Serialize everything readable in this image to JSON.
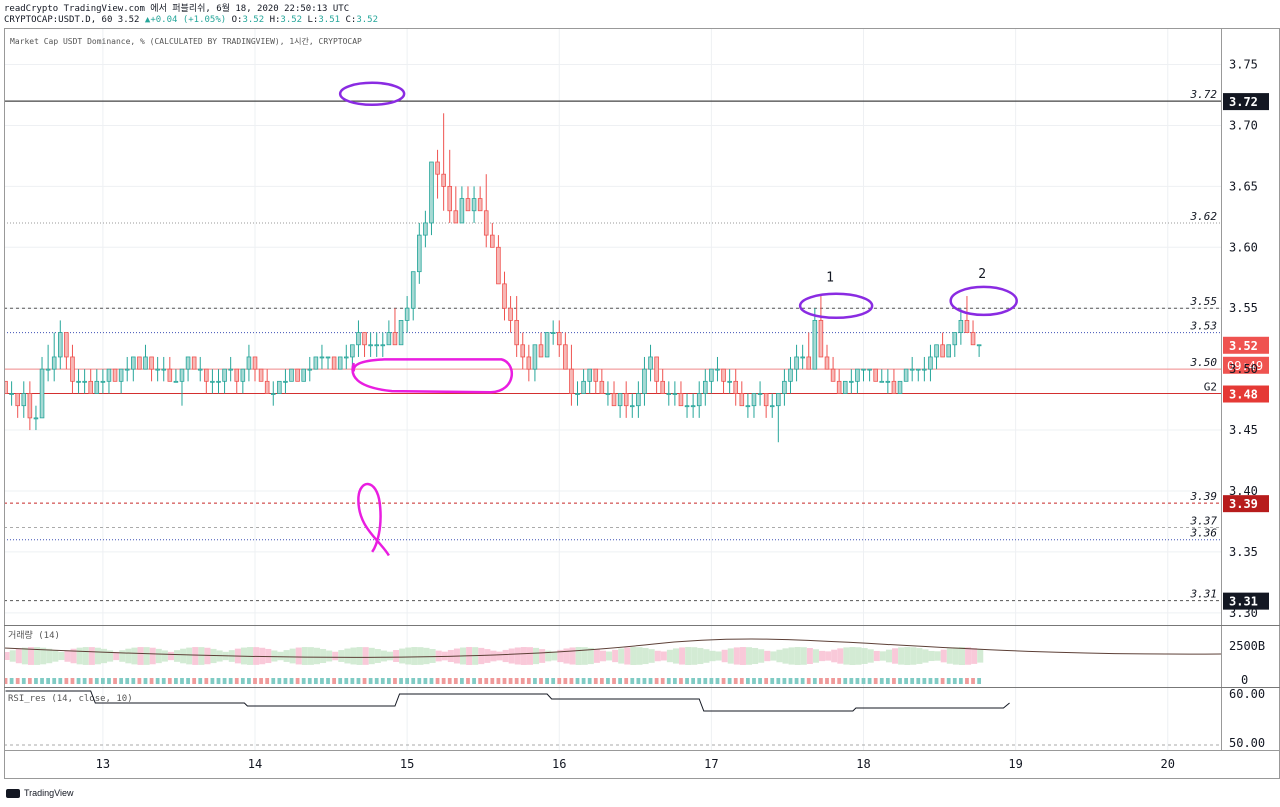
{
  "header": {
    "line1": "readCrypto TradingView.com 에서 퍼블리쉬, 6월 18, 2020 22:50:13 UTC",
    "symbol": "CRYPTOCAP:USDT.D, 60",
    "last": "3.52",
    "change_arrow": "▲",
    "change": "+0.04 (+1.05%)",
    "o_label": "O:",
    "o": "3.52",
    "h_label": "H:",
    "h": "3.52",
    "l_label": "L:",
    "l": "3.51",
    "c_label": "C:",
    "c": "3.52"
  },
  "chart_data": {
    "type": "candlestick",
    "title": "Market Cap USDT Dominance, % (CALCULATED BY TRADINGVIEW), 1시간, CRYPTOCAP",
    "ylim": [
      3.29,
      3.78
    ],
    "y_ticks": [
      "3.30",
      "3.35",
      "3.40",
      "3.45",
      "3.50",
      "3.55",
      "3.60",
      "3.65",
      "3.70",
      "3.75"
    ],
    "x_ticks": [
      "13",
      "14",
      "15",
      "16",
      "17",
      "18",
      "19",
      "20"
    ],
    "x_range": [
      12.35,
      20.35
    ],
    "colors": {
      "up": "#26a69a",
      "down": "#ef5350",
      "up_fill": "#a7d9d4",
      "down_fill": "#f7b8b6",
      "annot_purple": "#8a2be2",
      "annot_magenta": "#e91ee0"
    },
    "ohlc": [
      [
        12.36,
        3.49,
        3.49,
        3.48,
        3.48
      ],
      [
        12.4,
        3.48,
        3.49,
        3.47,
        3.48
      ],
      [
        12.44,
        3.48,
        3.48,
        3.46,
        3.47
      ],
      [
        12.48,
        3.47,
        3.49,
        3.46,
        3.48
      ],
      [
        12.52,
        3.48,
        3.49,
        3.45,
        3.46
      ],
      [
        12.56,
        3.46,
        3.47,
        3.45,
        3.46
      ],
      [
        12.6,
        3.46,
        3.51,
        3.46,
        3.5
      ],
      [
        12.64,
        3.5,
        3.52,
        3.49,
        3.5
      ],
      [
        12.68,
        3.5,
        3.53,
        3.49,
        3.51
      ],
      [
        12.72,
        3.51,
        3.54,
        3.5,
        3.53
      ],
      [
        12.76,
        3.53,
        3.53,
        3.5,
        3.51
      ],
      [
        12.8,
        3.51,
        3.52,
        3.48,
        3.49
      ],
      [
        12.84,
        3.49,
        3.5,
        3.48,
        3.49
      ],
      [
        12.88,
        3.49,
        3.5,
        3.48,
        3.49
      ],
      [
        12.92,
        3.49,
        3.5,
        3.48,
        3.48
      ],
      [
        12.96,
        3.48,
        3.5,
        3.48,
        3.49
      ],
      [
        13.0,
        3.49,
        3.5,
        3.48,
        3.49
      ],
      [
        13.04,
        3.49,
        3.5,
        3.48,
        3.5
      ],
      [
        13.08,
        3.5,
        3.5,
        3.49,
        3.49
      ],
      [
        13.12,
        3.49,
        3.5,
        3.48,
        3.5
      ],
      [
        13.16,
        3.5,
        3.51,
        3.49,
        3.5
      ],
      [
        13.2,
        3.5,
        3.51,
        3.49,
        3.51
      ],
      [
        13.24,
        3.51,
        3.51,
        3.5,
        3.5
      ],
      [
        13.28,
        3.5,
        3.52,
        3.5,
        3.51
      ],
      [
        13.32,
        3.51,
        3.51,
        3.49,
        3.5
      ],
      [
        13.36,
        3.5,
        3.51,
        3.49,
        3.5
      ],
      [
        13.4,
        3.5,
        3.51,
        3.49,
        3.5
      ],
      [
        13.44,
        3.5,
        3.51,
        3.49,
        3.49
      ],
      [
        13.48,
        3.49,
        3.5,
        3.49,
        3.49
      ],
      [
        13.52,
        3.49,
        3.5,
        3.47,
        3.5
      ],
      [
        13.56,
        3.5,
        3.51,
        3.49,
        3.51
      ],
      [
        13.6,
        3.51,
        3.51,
        3.5,
        3.5
      ],
      [
        13.64,
        3.5,
        3.51,
        3.49,
        3.5
      ],
      [
        13.68,
        3.5,
        3.5,
        3.48,
        3.49
      ],
      [
        13.72,
        3.49,
        3.5,
        3.48,
        3.49
      ],
      [
        13.76,
        3.49,
        3.5,
        3.48,
        3.49
      ],
      [
        13.8,
        3.49,
        3.5,
        3.48,
        3.5
      ],
      [
        13.84,
        3.5,
        3.51,
        3.49,
        3.5
      ],
      [
        13.88,
        3.5,
        3.5,
        3.48,
        3.49
      ],
      [
        13.92,
        3.49,
        3.5,
        3.48,
        3.5
      ],
      [
        13.96,
        3.5,
        3.52,
        3.49,
        3.51
      ],
      [
        14.0,
        3.51,
        3.51,
        3.49,
        3.5
      ],
      [
        14.04,
        3.5,
        3.5,
        3.49,
        3.49
      ],
      [
        14.08,
        3.49,
        3.5,
        3.48,
        3.48
      ],
      [
        14.12,
        3.48,
        3.49,
        3.47,
        3.48
      ],
      [
        14.16,
        3.48,
        3.49,
        3.48,
        3.49
      ],
      [
        14.2,
        3.49,
        3.5,
        3.48,
        3.49
      ],
      [
        14.24,
        3.49,
        3.5,
        3.49,
        3.5
      ],
      [
        14.28,
        3.5,
        3.5,
        3.49,
        3.49
      ],
      [
        14.32,
        3.49,
        3.5,
        3.49,
        3.5
      ],
      [
        14.36,
        3.5,
        3.51,
        3.49,
        3.5
      ],
      [
        14.4,
        3.5,
        3.51,
        3.5,
        3.51
      ],
      [
        14.44,
        3.51,
        3.52,
        3.5,
        3.51
      ],
      [
        14.48,
        3.51,
        3.51,
        3.5,
        3.51
      ],
      [
        14.52,
        3.51,
        3.51,
        3.5,
        3.5
      ],
      [
        14.56,
        3.5,
        3.51,
        3.5,
        3.51
      ],
      [
        14.6,
        3.51,
        3.52,
        3.5,
        3.51
      ],
      [
        14.64,
        3.51,
        3.52,
        3.5,
        3.52
      ],
      [
        14.68,
        3.52,
        3.54,
        3.51,
        3.53
      ],
      [
        14.72,
        3.53,
        3.53,
        3.51,
        3.52
      ],
      [
        14.76,
        3.52,
        3.53,
        3.51,
        3.52
      ],
      [
        14.8,
        3.52,
        3.53,
        3.51,
        3.52
      ],
      [
        14.84,
        3.52,
        3.53,
        3.51,
        3.52
      ],
      [
        14.88,
        3.52,
        3.54,
        3.52,
        3.53
      ],
      [
        14.92,
        3.53,
        3.55,
        3.52,
        3.52
      ],
      [
        14.96,
        3.52,
        3.54,
        3.52,
        3.54
      ],
      [
        15.0,
        3.54,
        3.56,
        3.53,
        3.55
      ],
      [
        15.04,
        3.55,
        3.58,
        3.54,
        3.58
      ],
      [
        15.08,
        3.58,
        3.62,
        3.57,
        3.61
      ],
      [
        15.12,
        3.61,
        3.63,
        3.6,
        3.62
      ],
      [
        15.16,
        3.62,
        3.67,
        3.61,
        3.67
      ],
      [
        15.2,
        3.67,
        3.68,
        3.64,
        3.66
      ],
      [
        15.24,
        3.66,
        3.71,
        3.63,
        3.65
      ],
      [
        15.28,
        3.65,
        3.68,
        3.62,
        3.63
      ],
      [
        15.32,
        3.63,
        3.65,
        3.62,
        3.62
      ],
      [
        15.36,
        3.62,
        3.65,
        3.62,
        3.64
      ],
      [
        15.4,
        3.64,
        3.65,
        3.63,
        3.63
      ],
      [
        15.44,
        3.63,
        3.65,
        3.62,
        3.64
      ],
      [
        15.48,
        3.64,
        3.65,
        3.63,
        3.63
      ],
      [
        15.52,
        3.63,
        3.66,
        3.6,
        3.61
      ],
      [
        15.56,
        3.61,
        3.62,
        3.6,
        3.6
      ],
      [
        15.6,
        3.6,
        3.61,
        3.57,
        3.57
      ],
      [
        15.64,
        3.57,
        3.58,
        3.54,
        3.55
      ],
      [
        15.68,
        3.55,
        3.56,
        3.53,
        3.54
      ],
      [
        15.72,
        3.54,
        3.56,
        3.51,
        3.52
      ],
      [
        15.76,
        3.52,
        3.53,
        3.5,
        3.51
      ],
      [
        15.8,
        3.51,
        3.52,
        3.49,
        3.5
      ],
      [
        15.84,
        3.5,
        3.52,
        3.49,
        3.52
      ],
      [
        15.88,
        3.52,
        3.53,
        3.51,
        3.51
      ],
      [
        15.92,
        3.51,
        3.53,
        3.51,
        3.53
      ],
      [
        15.96,
        3.53,
        3.54,
        3.52,
        3.53
      ],
      [
        16.0,
        3.53,
        3.54,
        3.51,
        3.52
      ],
      [
        16.04,
        3.52,
        3.53,
        3.5,
        3.5
      ],
      [
        16.08,
        3.5,
        3.52,
        3.47,
        3.48
      ],
      [
        16.12,
        3.48,
        3.49,
        3.47,
        3.48
      ],
      [
        16.16,
        3.48,
        3.5,
        3.48,
        3.49
      ],
      [
        16.2,
        3.49,
        3.5,
        3.48,
        3.5
      ],
      [
        16.24,
        3.5,
        3.5,
        3.48,
        3.49
      ],
      [
        16.28,
        3.49,
        3.5,
        3.48,
        3.48
      ],
      [
        16.32,
        3.48,
        3.49,
        3.47,
        3.48
      ],
      [
        16.36,
        3.48,
        3.49,
        3.47,
        3.47
      ],
      [
        16.4,
        3.47,
        3.48,
        3.46,
        3.48
      ],
      [
        16.44,
        3.48,
        3.49,
        3.46,
        3.47
      ],
      [
        16.48,
        3.47,
        3.48,
        3.46,
        3.47
      ],
      [
        16.52,
        3.47,
        3.49,
        3.46,
        3.48
      ],
      [
        16.56,
        3.48,
        3.51,
        3.47,
        3.5
      ],
      [
        16.6,
        3.5,
        3.52,
        3.49,
        3.51
      ],
      [
        16.64,
        3.51,
        3.51,
        3.48,
        3.49
      ],
      [
        16.68,
        3.49,
        3.5,
        3.48,
        3.48
      ],
      [
        16.72,
        3.48,
        3.49,
        3.47,
        3.48
      ],
      [
        16.76,
        3.48,
        3.49,
        3.47,
        3.48
      ],
      [
        16.8,
        3.48,
        3.49,
        3.47,
        3.47
      ],
      [
        16.84,
        3.47,
        3.48,
        3.46,
        3.47
      ],
      [
        16.88,
        3.47,
        3.48,
        3.46,
        3.47
      ],
      [
        16.92,
        3.47,
        3.49,
        3.46,
        3.48
      ],
      [
        16.96,
        3.48,
        3.5,
        3.47,
        3.49
      ],
      [
        17.0,
        3.49,
        3.5,
        3.48,
        3.5
      ],
      [
        17.04,
        3.5,
        3.51,
        3.49,
        3.5
      ],
      [
        17.08,
        3.5,
        3.5,
        3.48,
        3.49
      ],
      [
        17.12,
        3.49,
        3.5,
        3.48,
        3.49
      ],
      [
        17.16,
        3.49,
        3.5,
        3.47,
        3.48
      ],
      [
        17.2,
        3.48,
        3.49,
        3.47,
        3.47
      ],
      [
        17.24,
        3.47,
        3.48,
        3.46,
        3.47
      ],
      [
        17.28,
        3.47,
        3.48,
        3.46,
        3.48
      ],
      [
        17.32,
        3.48,
        3.49,
        3.47,
        3.48
      ],
      [
        17.36,
        3.48,
        3.48,
        3.46,
        3.47
      ],
      [
        17.4,
        3.47,
        3.48,
        3.46,
        3.47
      ],
      [
        17.44,
        3.47,
        3.48,
        3.44,
        3.48
      ],
      [
        17.48,
        3.48,
        3.5,
        3.47,
        3.49
      ],
      [
        17.52,
        3.49,
        3.51,
        3.48,
        3.5
      ],
      [
        17.56,
        3.5,
        3.52,
        3.49,
        3.51
      ],
      [
        17.6,
        3.51,
        3.52,
        3.5,
        3.51
      ],
      [
        17.64,
        3.51,
        3.53,
        3.5,
        3.5
      ],
      [
        17.68,
        3.5,
        3.55,
        3.5,
        3.54
      ],
      [
        17.72,
        3.54,
        3.56,
        3.51,
        3.51
      ],
      [
        17.76,
        3.51,
        3.52,
        3.5,
        3.5
      ],
      [
        17.8,
        3.5,
        3.51,
        3.49,
        3.49
      ],
      [
        17.84,
        3.49,
        3.5,
        3.48,
        3.48
      ],
      [
        17.88,
        3.48,
        3.49,
        3.48,
        3.49
      ],
      [
        17.92,
        3.49,
        3.5,
        3.48,
        3.49
      ],
      [
        17.96,
        3.49,
        3.5,
        3.48,
        3.5
      ],
      [
        18.0,
        3.5,
        3.5,
        3.49,
        3.5
      ],
      [
        18.04,
        3.5,
        3.5,
        3.49,
        3.5
      ],
      [
        18.08,
        3.5,
        3.5,
        3.49,
        3.49
      ],
      [
        18.12,
        3.49,
        3.5,
        3.49,
        3.49
      ],
      [
        18.16,
        3.49,
        3.5,
        3.48,
        3.49
      ],
      [
        18.2,
        3.49,
        3.5,
        3.48,
        3.48
      ],
      [
        18.24,
        3.48,
        3.49,
        3.48,
        3.49
      ],
      [
        18.28,
        3.49,
        3.5,
        3.49,
        3.5
      ],
      [
        18.32,
        3.5,
        3.51,
        3.49,
        3.5
      ],
      [
        18.36,
        3.5,
        3.5,
        3.49,
        3.5
      ],
      [
        18.4,
        3.5,
        3.51,
        3.49,
        3.5
      ],
      [
        18.44,
        3.5,
        3.52,
        3.49,
        3.51
      ],
      [
        18.48,
        3.51,
        3.52,
        3.5,
        3.52
      ],
      [
        18.52,
        3.52,
        3.53,
        3.51,
        3.51
      ],
      [
        18.56,
        3.51,
        3.52,
        3.51,
        3.52
      ],
      [
        18.6,
        3.52,
        3.53,
        3.51,
        3.53
      ],
      [
        18.64,
        3.53,
        3.55,
        3.52,
        3.54
      ],
      [
        18.68,
        3.54,
        3.56,
        3.53,
        3.53
      ],
      [
        18.72,
        3.53,
        3.54,
        3.52,
        3.52
      ],
      [
        18.76,
        3.52,
        3.52,
        3.51,
        3.52
      ]
    ],
    "horizontal_lines": [
      {
        "price": 3.72,
        "label": "3.72",
        "style": "solid-dark",
        "badge": true
      },
      {
        "price": 3.62,
        "label": "3.62",
        "style": "dotted-gray"
      },
      {
        "price": 3.55,
        "label": "3.55",
        "style": "dashed-dark"
      },
      {
        "price": 3.53,
        "label": "3.53",
        "style": "dotted-blue"
      },
      {
        "price": 3.5,
        "label": "3.50",
        "style": "solid-pink"
      },
      {
        "price": 3.48,
        "label": "G2",
        "style": "solid-red",
        "badge": true,
        "badge_label": "3.48"
      },
      {
        "price": 3.39,
        "label": "3.39",
        "style": "dashed-red",
        "badge": true
      },
      {
        "price": 3.37,
        "label": "3.37",
        "style": "dashed-gray"
      },
      {
        "price": 3.36,
        "label": "3.36",
        "style": "dotted-blue"
      },
      {
        "price": 3.31,
        "label": "3.31",
        "style": "dashed-dark",
        "badge": true
      }
    ],
    "price_badge": {
      "price": "3.52",
      "countdown": "09:49"
    },
    "annotations": [
      "1",
      "2"
    ],
    "volume_panel": {
      "title": "거래량 (14)",
      "ticks": [
        "2500B",
        "0"
      ]
    },
    "rsi_panel": {
      "title": "RSI_res (14, close, 10)",
      "ticks": [
        "60.00",
        "50.00"
      ]
    }
  },
  "footer": {
    "brand": "TradingView"
  }
}
